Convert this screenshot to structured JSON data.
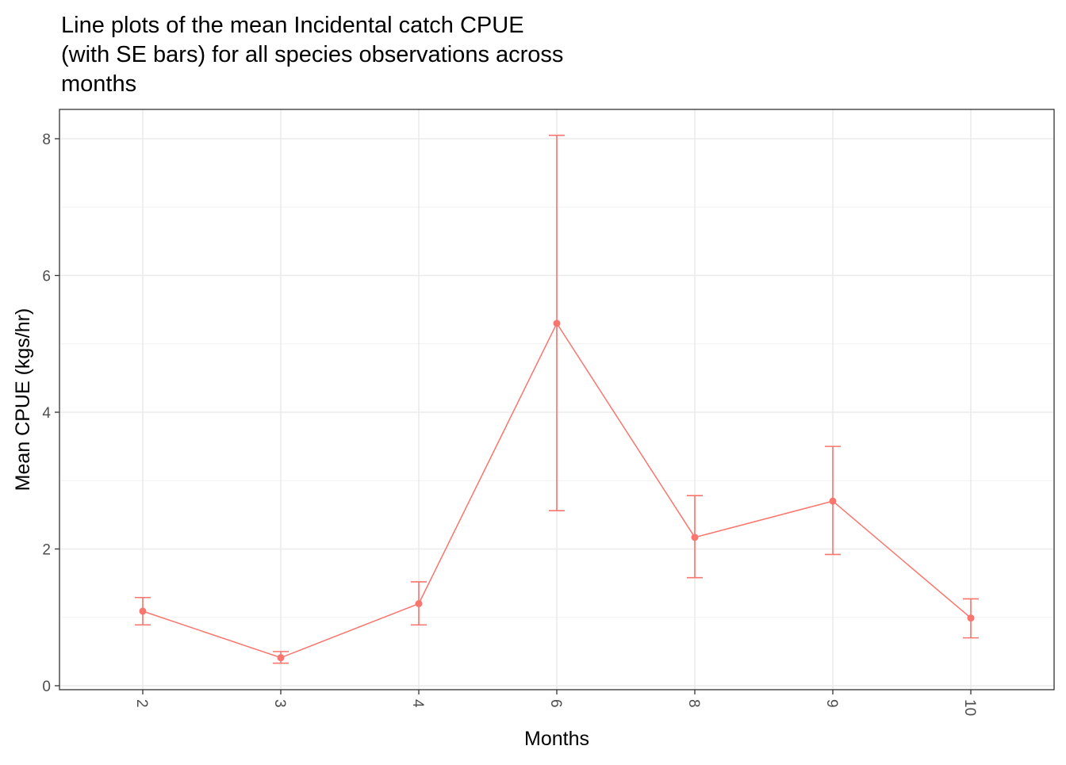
{
  "chart_data": {
    "type": "line",
    "title_lines": [
      "Line plots of the mean Incidental catch CPUE",
      "(with SE bars) for all species observations across",
      "months"
    ],
    "xlabel": "Months",
    "ylabel": "Mean CPUE (kgs/hr)",
    "categories": [
      "2",
      "3",
      "4",
      "6",
      "8",
      "9",
      "10"
    ],
    "series": [
      {
        "values": [
          1.09,
          0.41,
          1.2,
          5.3,
          2.17,
          2.7,
          0.99
        ],
        "se_lower": [
          0.89,
          0.33,
          0.89,
          2.56,
          1.58,
          1.92,
          0.7
        ],
        "se_upper": [
          1.29,
          0.5,
          1.52,
          8.05,
          2.78,
          3.5,
          1.27
        ],
        "color": "#F8766D"
      }
    ],
    "ylim": [
      -0.1,
      8.4
    ],
    "yticks": [
      0,
      2,
      4,
      6,
      8
    ],
    "x_tick_rotation": "vertical",
    "grid": true,
    "legend": "none"
  }
}
